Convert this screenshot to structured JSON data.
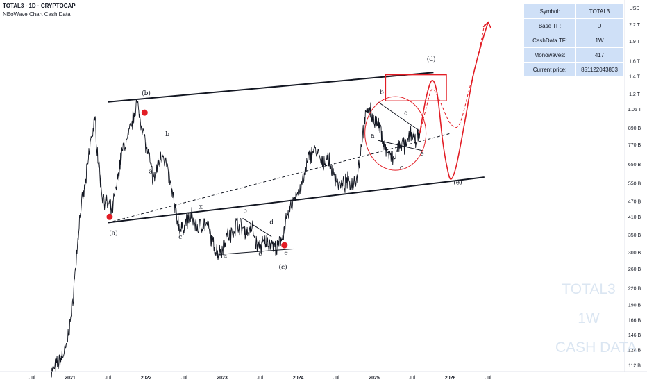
{
  "header": {
    "title": "TOTAL3 · 1D · CRYPTOCAP",
    "subtitle": "NEoWave Chart Cash Data"
  },
  "info_table": [
    {
      "key": "Symbol:",
      "value": "TOTAL3"
    },
    {
      "key": "Base TF:",
      "value": "D"
    },
    {
      "key": "CashData TF:",
      "value": "1W"
    },
    {
      "key": "Monowaves:",
      "value": "417"
    },
    {
      "key": "Current price:",
      "value": "851122043803"
    }
  ],
  "watermark": [
    "TOTAL3",
    "1W",
    "CASH DATA"
  ],
  "chart_data": {
    "type": "line",
    "currency": "USD",
    "yscale": "log",
    "y_ticks": [
      {
        "label": "2.2 T",
        "value": 2200000000000.0
      },
      {
        "label": "1.9 T",
        "value": 1900000000000.0
      },
      {
        "label": "1.6 T",
        "value": 1600000000000.0
      },
      {
        "label": "1.4 T",
        "value": 1400000000000.0
      },
      {
        "label": "1.2 T",
        "value": 1200000000000.0
      },
      {
        "label": "1.05 T",
        "value": 1050000000000.0
      },
      {
        "label": "890 B",
        "value": 890000000000.0
      },
      {
        "label": "770 B",
        "value": 770000000000.0
      },
      {
        "label": "650 B",
        "value": 650000000000.0
      },
      {
        "label": "550 B",
        "value": 550000000000.0
      },
      {
        "label": "470 B",
        "value": 470000000000.0
      },
      {
        "label": "410 B",
        "value": 410000000000.0
      },
      {
        "label": "350 B",
        "value": 350000000000.0
      },
      {
        "label": "300 B",
        "value": 300000000000.0
      },
      {
        "label": "260 B",
        "value": 260000000000.0
      },
      {
        "label": "220 B",
        "value": 220000000000.0
      },
      {
        "label": "190 B",
        "value": 190000000000.0
      },
      {
        "label": "166 B",
        "value": 166000000000.0
      },
      {
        "label": "146 B",
        "value": 146000000000.0
      },
      {
        "label": "128 B",
        "value": 128000000000.0
      },
      {
        "label": "112 B",
        "value": 112000000000.0
      }
    ],
    "x_ticks": [
      {
        "label": "Jul",
        "t": 2020.5,
        "bold": false
      },
      {
        "label": "2021",
        "t": 2021.0,
        "bold": true
      },
      {
        "label": "Jul",
        "t": 2021.5,
        "bold": false
      },
      {
        "label": "2022",
        "t": 2022.0,
        "bold": true
      },
      {
        "label": "Jul",
        "t": 2022.5,
        "bold": false
      },
      {
        "label": "2023",
        "t": 2023.0,
        "bold": true
      },
      {
        "label": "Jul",
        "t": 2023.5,
        "bold": false
      },
      {
        "label": "2024",
        "t": 2024.0,
        "bold": true
      },
      {
        "label": "Jul",
        "t": 2024.5,
        "bold": false
      },
      {
        "label": "2025",
        "t": 2025.0,
        "bold": true
      },
      {
        "label": "Jul",
        "t": 2025.5,
        "bold": false
      },
      {
        "label": "2026",
        "t": 2026.0,
        "bold": true
      },
      {
        "label": "Jul",
        "t": 2026.5,
        "bold": false
      }
    ],
    "price_series": [
      [
        2020.75,
        105000000000.0
      ],
      [
        2020.85,
        115000000000.0
      ],
      [
        2020.95,
        130000000000.0
      ],
      [
        2021.02,
        180000000000.0
      ],
      [
        2021.08,
        280000000000.0
      ],
      [
        2021.13,
        420000000000.0
      ],
      [
        2021.2,
        540000000000.0
      ],
      [
        2021.27,
        800000000000.0
      ],
      [
        2021.33,
        950000000000.0
      ],
      [
        2021.36,
        720000000000.0
      ],
      [
        2021.42,
        500000000000.0
      ],
      [
        2021.48,
        460000000000.0
      ],
      [
        2021.55,
        430000000000.0
      ],
      [
        2021.62,
        560000000000.0
      ],
      [
        2021.68,
        720000000000.0
      ],
      [
        2021.75,
        800000000000.0
      ],
      [
        2021.82,
        940000000000.0
      ],
      [
        2021.87,
        1120000000000.0
      ],
      [
        2021.92,
        980000000000.0
      ],
      [
        2021.97,
        850000000000.0
      ],
      [
        2022.0,
        760000000000.0
      ],
      [
        2022.05,
        660000000000.0
      ],
      [
        2022.1,
        560000000000.0
      ],
      [
        2022.15,
        640000000000.0
      ],
      [
        2022.22,
        720000000000.0
      ],
      [
        2022.28,
        620000000000.0
      ],
      [
        2022.34,
        510000000000.0
      ],
      [
        2022.4,
        410000000000.0
      ],
      [
        2022.46,
        360000000000.0
      ],
      [
        2022.52,
        390000000000.0
      ],
      [
        2022.6,
        410000000000.0
      ],
      [
        2022.68,
        370000000000.0
      ],
      [
        2022.75,
        390000000000.0
      ],
      [
        2022.82,
        370000000000.0
      ],
      [
        2022.88,
        320000000000.0
      ],
      [
        2022.94,
        300000000000.0
      ],
      [
        2023.0,
        310000000000.0
      ],
      [
        2023.06,
        350000000000.0
      ],
      [
        2023.12,
        350000000000.0
      ],
      [
        2023.2,
        390000000000.0
      ],
      [
        2023.27,
        370000000000.0
      ],
      [
        2023.33,
        360000000000.0
      ],
      [
        2023.4,
        370000000000.0
      ],
      [
        2023.46,
        315000000000.0
      ],
      [
        2023.52,
        320000000000.0
      ],
      [
        2023.58,
        330000000000.0
      ],
      [
        2023.66,
        325000000000.0
      ],
      [
        2023.72,
        305000000000.0
      ],
      [
        2023.78,
        340000000000.0
      ],
      [
        2023.84,
        390000000000.0
      ],
      [
        2023.92,
        460000000000.0
      ],
      [
        2023.97,
        500000000000.0
      ],
      [
        2024.03,
        520000000000.0
      ],
      [
        2024.08,
        580000000000.0
      ],
      [
        2024.14,
        690000000000.0
      ],
      [
        2024.2,
        740000000000.0
      ],
      [
        2024.26,
        710000000000.0
      ],
      [
        2024.32,
        640000000000.0
      ],
      [
        2024.38,
        700000000000.0
      ],
      [
        2024.44,
        620000000000.0
      ],
      [
        2024.5,
        570000000000.0
      ],
      [
        2024.57,
        530000000000.0
      ],
      [
        2024.64,
        560000000000.0
      ],
      [
        2024.71,
        550000000000.0
      ],
      [
        2024.78,
        590000000000.0
      ],
      [
        2024.85,
        850000000000.0
      ],
      [
        2024.92,
        1080000000000.0
      ],
      [
        2024.97,
        1000000000000.0
      ],
      [
        2025.03,
        920000000000.0
      ],
      [
        2025.08,
        880000000000.0
      ],
      [
        2025.14,
        760000000000.0
      ],
      [
        2025.2,
        700000000000.0
      ],
      [
        2025.26,
        670000000000.0
      ],
      [
        2025.3,
        730000000000.0
      ],
      [
        2025.36,
        780000000000.0
      ],
      [
        2025.42,
        750000000000.0
      ],
      [
        2025.48,
        870000000000.0
      ],
      [
        2025.54,
        780000000000.0
      ],
      [
        2025.6,
        850000000000.0
      ]
    ],
    "projections": [
      {
        "name": "projection-solid",
        "style": "solid",
        "color": "#e21d25",
        "points": [
          [
            2025.6,
            850000000000.0
          ],
          [
            2025.68,
            1150000000000.0
          ],
          [
            2025.76,
            1350000000000.0
          ],
          [
            2025.83,
            1200000000000.0
          ],
          [
            2025.9,
            800000000000.0
          ],
          [
            2025.96,
            630000000000.0
          ],
          [
            2026.01,
            570000000000.0
          ],
          [
            2026.08,
            640000000000.0
          ],
          [
            2026.18,
            900000000000.0
          ],
          [
            2026.3,
            1400000000000.0
          ],
          [
            2026.42,
            1900000000000.0
          ],
          [
            2026.5,
            2250000000000.0
          ]
        ]
      },
      {
        "name": "projection-dashed",
        "style": "dashed",
        "color": "#e21d25",
        "points": [
          [
            2025.6,
            850000000000.0
          ],
          [
            2025.68,
            1050000000000.0
          ],
          [
            2025.76,
            1250000000000.0
          ],
          [
            2025.85,
            1150000000000.0
          ],
          [
            2026.0,
            930000000000.0
          ],
          [
            2026.12,
            920000000000.0
          ],
          [
            2026.25,
            1250000000000.0
          ],
          [
            2026.38,
            1750000000000.0
          ],
          [
            2026.45,
            2200000000000.0
          ]
        ]
      }
    ],
    "trendlines": [
      {
        "name": "upper-channel-line",
        "style": "solid",
        "width": 2,
        "color": "#131722",
        "points": [
          [
            2021.5,
            1120000000000.0
          ],
          [
            2025.78,
            1450000000000.0
          ]
        ]
      },
      {
        "name": "lower-channel-line",
        "style": "solid",
        "width": 2,
        "color": "#131722",
        "points": [
          [
            2021.5,
            390000000000.0
          ],
          [
            2026.45,
            580000000000.0
          ]
        ]
      },
      {
        "name": "midline-dashed",
        "style": "dashed",
        "width": 1,
        "color": "#131722",
        "points": [
          [
            2021.5,
            390000000000.0
          ],
          [
            2026.0,
            850000000000.0
          ]
        ]
      },
      {
        "name": "c-triangle-upper",
        "style": "solid",
        "width": 1,
        "color": "#131722",
        "points": [
          [
            2023.27,
            405000000000.0
          ],
          [
            2023.65,
            345000000000.0
          ]
        ]
      },
      {
        "name": "c-triangle-lower",
        "style": "solid",
        "width": 1,
        "color": "#131722",
        "points": [
          [
            2022.95,
            295000000000.0
          ],
          [
            2023.95,
            310000000000.0
          ]
        ]
      },
      {
        "name": "d-triangle-upper",
        "style": "solid",
        "width": 1,
        "color": "#131722",
        "points": [
          [
            2025.05,
            1120000000000.0
          ],
          [
            2025.62,
            860000000000.0
          ]
        ]
      },
      {
        "name": "d-triangle-lower",
        "style": "solid",
        "width": 1,
        "color": "#131722",
        "points": [
          [
            2025.05,
            800000000000.0
          ],
          [
            2025.65,
            730000000000.0
          ]
        ]
      }
    ],
    "target_box": {
      "t0": 2025.15,
      "t1": 2025.95,
      "v0": 1130000000000.0,
      "v1": 1420000000000.0,
      "color": "#e21d25"
    },
    "circle_zone": {
      "t": 2025.28,
      "v": 850000000000.0,
      "color": "#e21d25"
    },
    "markers": [
      {
        "t": 2021.52,
        "v": 410000000000.0,
        "color": "#e21d25"
      },
      {
        "t": 2021.98,
        "v": 1020000000000.0,
        "color": "#e21d25"
      },
      {
        "t": 2023.82,
        "v": 320000000000.0,
        "color": "#e21d25"
      }
    ],
    "wave_labels": [
      {
        "text": "(a)",
        "t": 2021.57,
        "v": 350000000000.0
      },
      {
        "text": "(b)",
        "t": 2022.0,
        "v": 1190000000000.0
      },
      {
        "text": "(c)",
        "t": 2023.8,
        "v": 260000000000.0
      },
      {
        "text": "(d)",
        "t": 2025.75,
        "v": 1600000000000.0
      },
      {
        "text": "(e)",
        "t": 2026.1,
        "v": 545000000000.0
      },
      {
        "text": "a",
        "t": 2022.06,
        "v": 600000000000.0
      },
      {
        "text": "b",
        "t": 2022.28,
        "v": 830000000000.0
      },
      {
        "text": "c",
        "t": 2022.45,
        "v": 338000000000.0
      },
      {
        "text": "a",
        "t": 2023.04,
        "v": 288000000000.0
      },
      {
        "text": "b",
        "t": 2023.3,
        "v": 425000000000.0
      },
      {
        "text": "c",
        "t": 2023.5,
        "v": 292000000000.0
      },
      {
        "text": "d",
        "t": 2023.65,
        "v": 385000000000.0
      },
      {
        "text": "e",
        "t": 2023.84,
        "v": 295000000000.0
      },
      {
        "text": "x",
        "t": 2022.72,
        "v": 440000000000.0,
        "color": "#e21d25"
      },
      {
        "text": "a",
        "t": 2024.98,
        "v": 820000000000.0
      },
      {
        "text": "b",
        "t": 2025.1,
        "v": 1200000000000.0
      },
      {
        "text": "c",
        "t": 2025.36,
        "v": 620000000000.0
      },
      {
        "text": "d",
        "t": 2025.42,
        "v": 1000000000000.0
      },
      {
        "text": "e",
        "t": 2025.63,
        "v": 700000000000.0
      }
    ]
  }
}
